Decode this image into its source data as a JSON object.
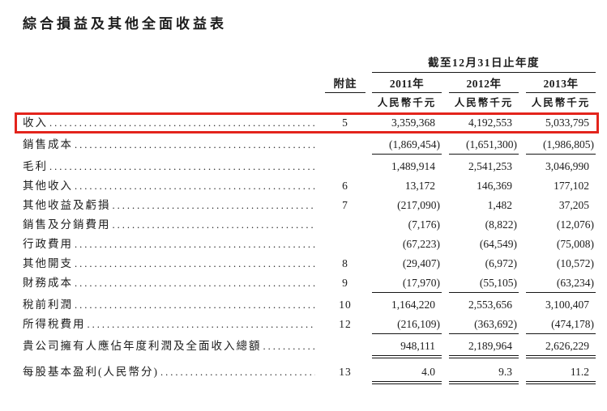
{
  "page": {
    "title": "綜合損益及其他全面收益表"
  },
  "table": {
    "period_header": "截至12月31日止年度",
    "note_col_header": "附註",
    "year_headers": [
      "2011年",
      "2012年",
      "2013年"
    ],
    "unit_label": "人民幣千元",
    "highlight_color": "#e3241c",
    "rows": [
      {
        "label": "收入",
        "note": "5",
        "values": [
          "3,359,368",
          "4,192,553",
          "5,033,795"
        ],
        "underline": "none",
        "highlight": true
      },
      {
        "label": "銷售成本",
        "note": "",
        "values": [
          "(1,869,454)",
          "(1,651,300)",
          "(1,986,805)"
        ],
        "underline": "single",
        "highlight": false
      },
      {
        "label": "毛利",
        "note": "",
        "values": [
          "1,489,914",
          "2,541,253",
          "3,046,990"
        ],
        "underline": "none",
        "highlight": false
      },
      {
        "label": "其他收入",
        "note": "6",
        "values": [
          "13,172",
          "146,369",
          "177,102"
        ],
        "underline": "none",
        "highlight": false
      },
      {
        "label": "其他收益及虧損",
        "note": "7",
        "values": [
          "(217,090)",
          "1,482",
          "37,205"
        ],
        "underline": "none",
        "highlight": false
      },
      {
        "label": "銷售及分銷費用",
        "note": "",
        "values": [
          "(7,176)",
          "(8,822)",
          "(12,076)"
        ],
        "underline": "none",
        "highlight": false
      },
      {
        "label": "行政費用",
        "note": "",
        "values": [
          "(67,223)",
          "(64,549)",
          "(75,008)"
        ],
        "underline": "none",
        "highlight": false
      },
      {
        "label": "其他開支",
        "note": "8",
        "values": [
          "(29,407)",
          "(6,972)",
          "(10,572)"
        ],
        "underline": "none",
        "highlight": false
      },
      {
        "label": "財務成本",
        "note": "9",
        "values": [
          "(17,970)",
          "(55,105)",
          "(63,234)"
        ],
        "underline": "single",
        "highlight": false
      },
      {
        "label": "稅前利潤",
        "note": "10",
        "values": [
          "1,164,220",
          "2,553,656",
          "3,100,407"
        ],
        "underline": "none",
        "highlight": false
      },
      {
        "label": "所得稅費用",
        "note": "12",
        "values": [
          "(216,109)",
          "(363,692)",
          "(474,178)"
        ],
        "underline": "single",
        "highlight": false
      },
      {
        "label": "貴公司擁有人應佔年度利潤及全面收入總額",
        "note": "",
        "values": [
          "948,111",
          "2,189,964",
          "2,626,229"
        ],
        "underline": "double",
        "highlight": false
      },
      {
        "label": "每股基本盈利(人民幣分)",
        "note": "13",
        "values": [
          "4.0",
          "9.3",
          "11.2"
        ],
        "underline": "double",
        "highlight": false
      }
    ]
  }
}
